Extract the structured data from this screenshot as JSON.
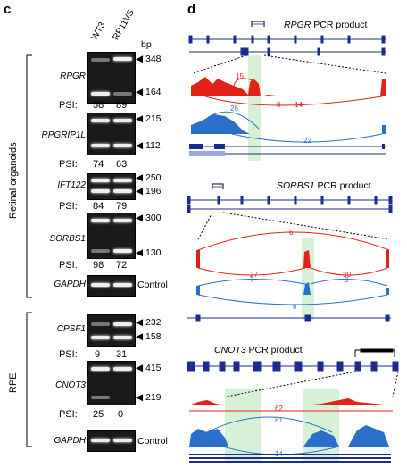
{
  "panel_c": {
    "label": "c",
    "lanes": [
      "WT3",
      "RP11VS"
    ],
    "size_unit": "bp",
    "psi_label": "PSI:",
    "groups": [
      "Retinal organoids",
      "RPE"
    ],
    "gels": [
      {
        "gene": "RPGR",
        "sizes": [
          "348",
          "164"
        ],
        "psi": [
          "58",
          "89"
        ]
      },
      {
        "gene": "RPGRIP1L",
        "sizes": [
          "215",
          "112"
        ],
        "psi": [
          "74",
          "63"
        ]
      },
      {
        "gene": "IFT122",
        "sizes": [
          "250",
          "196"
        ],
        "psi": [
          "84",
          "79"
        ]
      },
      {
        "gene": "SORBS1",
        "sizes": [
          "300",
          "130"
        ],
        "psi": [
          "98",
          "72"
        ]
      },
      {
        "gene": "GAPDH",
        "control": "Control"
      },
      {
        "gene": "CPSF1",
        "sizes": [
          "232",
          "158"
        ],
        "psi": [
          "9",
          "31"
        ]
      },
      {
        "gene": "CNOT3",
        "sizes": [
          "415",
          "219"
        ],
        "psi": [
          "25",
          "0"
        ]
      },
      {
        "gene": "GAPDH",
        "control": "Control"
      }
    ]
  },
  "panel_d": {
    "label": "d",
    "products": [
      {
        "gene": "RPGR",
        "suffix": "PCR product",
        "red_counts": [
          "15",
          "8",
          "14"
        ],
        "blue_counts": [
          "26",
          "22"
        ]
      },
      {
        "gene": "SORBS1",
        "suffix": "PCR product",
        "red_counts": [
          "6",
          "27",
          "30"
        ],
        "blue_counts": [
          "7",
          "9",
          "6"
        ]
      },
      {
        "gene": "CNOT3",
        "suffix": "PCR product",
        "red_counts": [
          "62"
        ],
        "blue_counts": [
          "81",
          "14"
        ]
      }
    ],
    "colors": {
      "red": "#e32119",
      "blue": "#2a6fc9",
      "green": "#cfeecf",
      "navy": "#1c2b8f"
    }
  }
}
